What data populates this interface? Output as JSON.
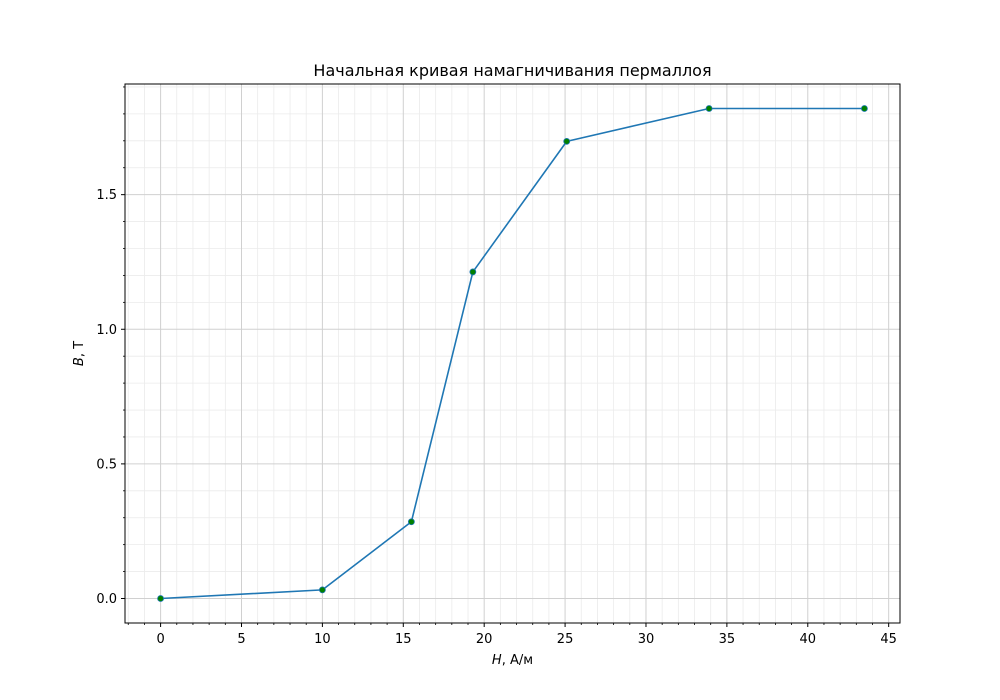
{
  "chart_data": {
    "type": "line",
    "title": "Начальная кривая намагничивания пермаллоя",
    "xlabel": {
      "var": "H",
      "unit": ", А/м"
    },
    "ylabel": {
      "var": "B",
      "unit": ", Т"
    },
    "xlim": [
      -2.2,
      45.7
    ],
    "ylim": [
      -0.091,
      1.911
    ],
    "xticks": [
      0,
      5,
      10,
      15,
      20,
      25,
      30,
      35,
      40,
      45
    ],
    "xtick_labels": [
      "0",
      "5",
      "10",
      "15",
      "20",
      "25",
      "30",
      "35",
      "40",
      "45"
    ],
    "x_minor_step": 1,
    "yticks": [
      0.0,
      0.5,
      1.0,
      1.5
    ],
    "ytick_labels": [
      "0.0",
      "0.5",
      "1.0",
      "1.5"
    ],
    "y_minor_step": 0.1,
    "grid": true,
    "series": [
      {
        "x": [
          0,
          10,
          15.5,
          19.3,
          25.1,
          33.9,
          43.5
        ],
        "y": [
          0.0,
          0.032,
          0.285,
          1.213,
          1.698,
          1.82,
          1.82
        ],
        "line_color": "#1f77b4",
        "marker_color": "#008000"
      }
    ]
  }
}
